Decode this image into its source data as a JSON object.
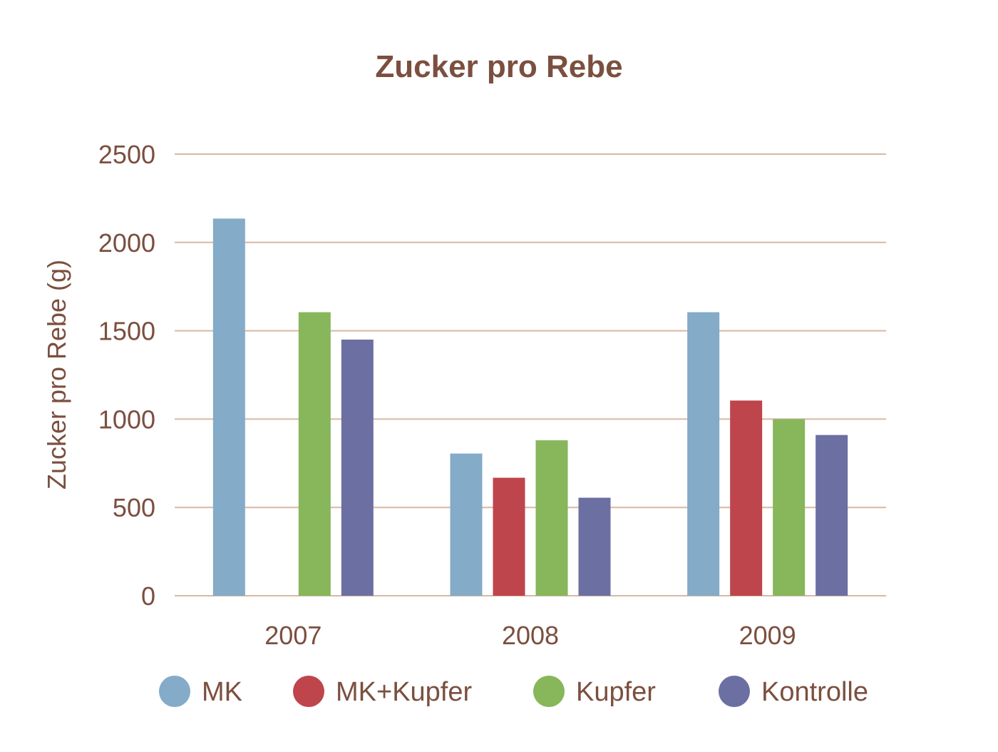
{
  "chart_data": {
    "type": "bar",
    "title": "Zucker pro Rebe",
    "xlabel": "",
    "ylabel": "Zucker pro Rebe (g)",
    "categories": [
      "2007",
      "2008",
      "2009"
    ],
    "ylim": [
      0,
      2500
    ],
    "yticks": [
      "0",
      "500",
      "1000",
      "1500",
      "2000",
      "2500"
    ],
    "grid": true,
    "legend_position": "bottom",
    "series": [
      {
        "name": "MK",
        "color": "#84abc8",
        "values": [
          2135,
          805,
          1605
        ]
      },
      {
        "name": "MK+Kupfer",
        "color": "#be454b",
        "values": [
          0,
          668,
          1105
        ]
      },
      {
        "name": "Kupfer",
        "color": "#87b65b",
        "values": [
          1605,
          880,
          1000
        ]
      },
      {
        "name": "Kontrolle",
        "color": "#6c6fa2",
        "values": [
          1450,
          555,
          910
        ]
      }
    ],
    "text_color": "#7b4f3f",
    "grid_color": "#d8b8a4"
  }
}
